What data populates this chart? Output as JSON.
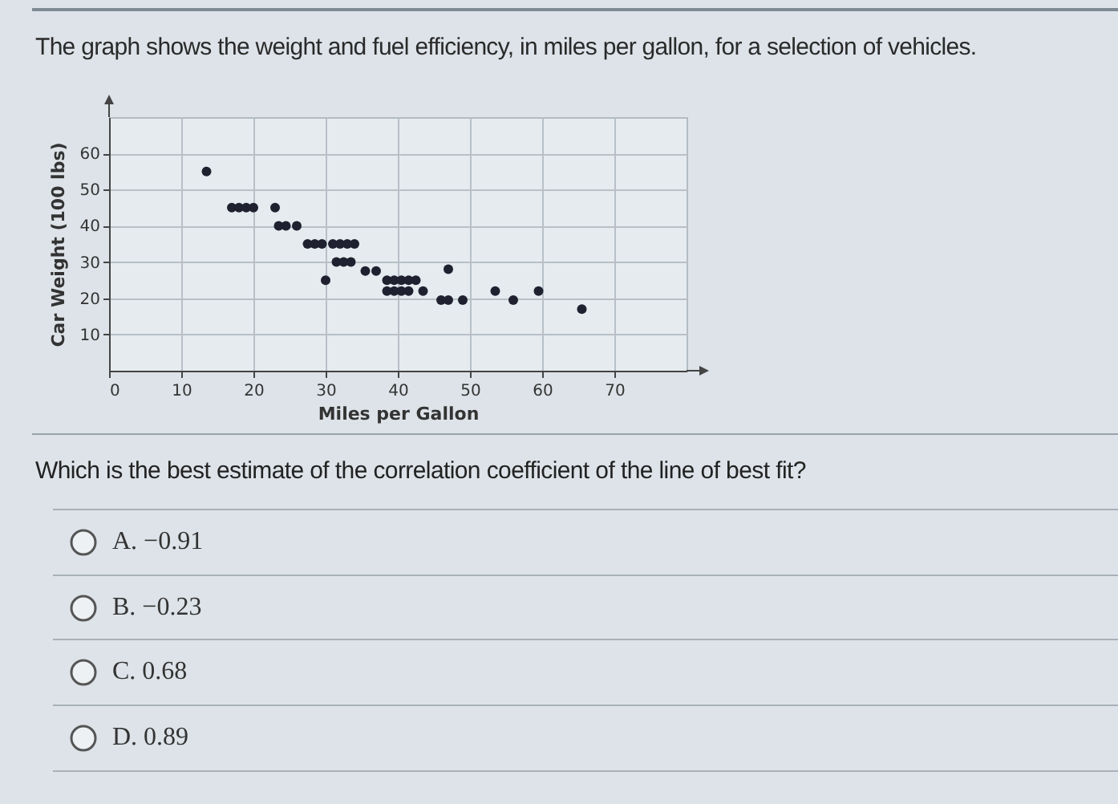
{
  "chart_data": {
    "type": "scatter",
    "title": "The graph shows the weight and fuel efficiency, in miles per gallon, for a selection of vehicles.",
    "xlabel": "Miles per Gallon",
    "ylabel": "Car Weight (100 lbs)",
    "x": [
      13.5,
      17,
      18,
      19,
      20,
      23,
      23.5,
      24.5,
      26,
      27.5,
      28.5,
      29.5,
      31,
      32,
      33,
      34,
      31.5,
      32.5,
      33.5,
      30,
      35.5,
      37,
      38.5,
      39.5,
      40.5,
      41.5,
      42.5,
      38.5,
      39.5,
      40.5,
      41.5,
      43.5,
      47,
      46,
      47,
      49,
      53.5,
      56,
      59.5,
      65.5
    ],
    "values": [
      55,
      45,
      45,
      45,
      45,
      45,
      40,
      40,
      40,
      35,
      35,
      35,
      35,
      35,
      35,
      35,
      30,
      30,
      30,
      25,
      27.5,
      27.5,
      25,
      25,
      25,
      25,
      25,
      22,
      22,
      22,
      22,
      22,
      28,
      19.5,
      19.5,
      19.5,
      22,
      19.5,
      22,
      17
    ],
    "color": "#1f2130",
    "marker": "circle",
    "xlim": [
      0,
      80
    ],
    "ylim": [
      0,
      70
    ],
    "xticks": [
      0,
      10,
      20,
      30,
      40,
      50,
      60,
      70
    ],
    "yticks": [
      10,
      20,
      30,
      40,
      50,
      60
    ],
    "grid": true,
    "annotations": [
      "Which is the best estimate of the correlation coefficient of the line of best fit?",
      "A. −0.91",
      "B. −0.23",
      "C. 0.68",
      "D. 0.89"
    ]
  }
}
